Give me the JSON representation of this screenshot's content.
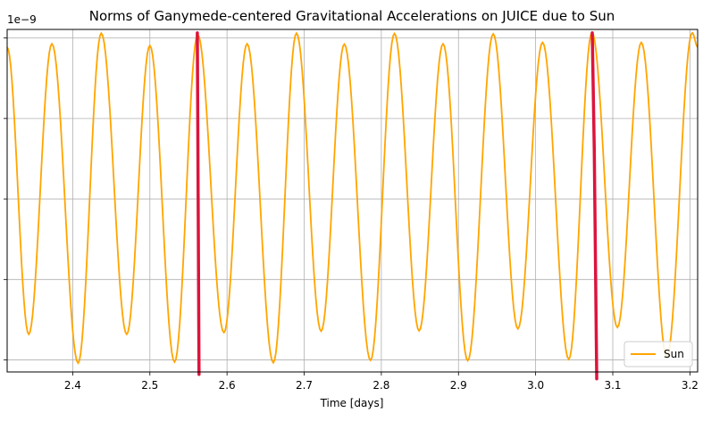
{
  "chart_data": {
    "type": "line",
    "title": "Norms of Ganymede-centered Gravitational Accelerations on JUICE due to Sun",
    "xlabel": "Time [days]",
    "ylabel": "",
    "y_offset_text": "1e−9",
    "xlim": [
      2.315,
      3.21
    ],
    "ylim": [
      0,
      1
    ],
    "x_ticks": [
      2.4,
      2.5,
      2.6,
      2.7,
      2.8,
      2.9,
      3.0,
      3.1,
      3.2
    ],
    "x_tick_labels": [
      "2.4",
      "2.5",
      "2.6",
      "2.7",
      "2.8",
      "2.9",
      "3.0",
      "3.1",
      "3.2"
    ],
    "y_gridlines": [
      0.035,
      0.27,
      0.505,
      0.74,
      0.975
    ],
    "grid": true,
    "legend_position": "bottom-right",
    "series": [
      {
        "name": "Sun",
        "color": "#FFA500",
        "x": [
          2.315,
          2.343,
          2.373,
          2.407,
          2.437,
          2.47,
          2.5,
          2.532,
          2.562,
          2.596,
          2.626,
          2.66,
          2.69,
          2.722,
          2.752,
          2.786,
          2.817,
          2.849,
          2.88,
          2.912,
          2.945,
          2.977,
          3.009,
          3.043,
          3.073,
          3.106,
          3.137,
          3.17,
          3.203,
          3.21
        ],
        "y": [
          0.948,
          0.11,
          0.958,
          0.026,
          0.989,
          0.11,
          0.953,
          0.029,
          0.985,
          0.115,
          0.958,
          0.027,
          0.989,
          0.119,
          0.957,
          0.034,
          0.988,
          0.12,
          0.958,
          0.033,
          0.987,
          0.126,
          0.962,
          0.037,
          0.991,
          0.13,
          0.962,
          0.043,
          0.99,
          0.949
        ]
      },
      {
        "name": "",
        "color": "#DC143C",
        "x": [
          2.5615,
          2.5626,
          2.5637
        ],
        "y": [
          0.99,
          0.5,
          -0.007
        ]
      },
      {
        "name": "",
        "color": "#DC143C",
        "x": [
          3.0734,
          3.076,
          3.0792
        ],
        "y": [
          0.99,
          0.65,
          -0.02
        ]
      }
    ]
  }
}
